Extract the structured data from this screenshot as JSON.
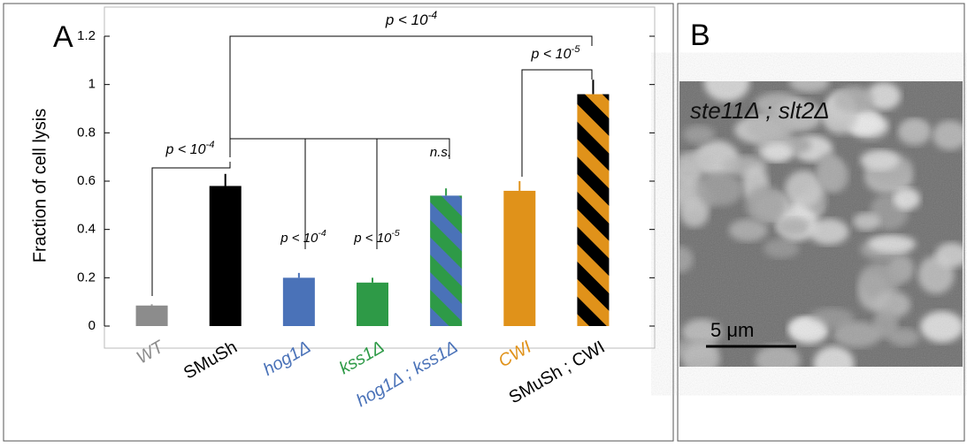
{
  "chart_data": {
    "type": "bar",
    "panel_label": "A",
    "y_label": "Fraction of cell lysis",
    "categories": [
      "WT",
      "SMuSh",
      "hog1Δ",
      "kss1Δ",
      "hog1Δ ; kss1Δ",
      "CWI",
      "SMuSh ; CWI"
    ],
    "label_colors": [
      "#8c8c8c",
      "#000000",
      "#4a72b8",
      "#2e9a47",
      "#4a72b8",
      "#e0921a",
      "#000000"
    ],
    "values": [
      0.085,
      0.58,
      0.2,
      0.18,
      0.54,
      0.56,
      0.96
    ],
    "errors": [
      0.005,
      0.05,
      0.02,
      0.02,
      0.03,
      0.04,
      0.06
    ],
    "colors": [
      [
        "#8c8c8c"
      ],
      [
        "#000000"
      ],
      [
        "#4a72b8"
      ],
      [
        "#2e9a47"
      ],
      [
        "#4a72b8",
        "#2e9a47"
      ],
      [
        "#e0921a"
      ],
      [
        "#e0921a",
        "#000000"
      ]
    ],
    "ylim": [
      0,
      1.2
    ],
    "yticks": [
      0,
      0.2,
      0.4,
      0.6,
      0.8,
      1,
      1.2
    ],
    "annotations": [
      {
        "text": "p < 10",
        "exponent": "-4"
      },
      {
        "text": "p < 10",
        "exponent": "-5"
      },
      {
        "text": "p < 10",
        "exponent": "-4"
      },
      {
        "text": "p < 10",
        "exponent": "-4"
      },
      {
        "text": "p < 10",
        "exponent": "-5"
      },
      {
        "text": "n.s."
      }
    ]
  },
  "image_panel": {
    "label": "B",
    "caption": "ste11Δ ; slt2Δ",
    "scale_bar": "5 μm"
  }
}
